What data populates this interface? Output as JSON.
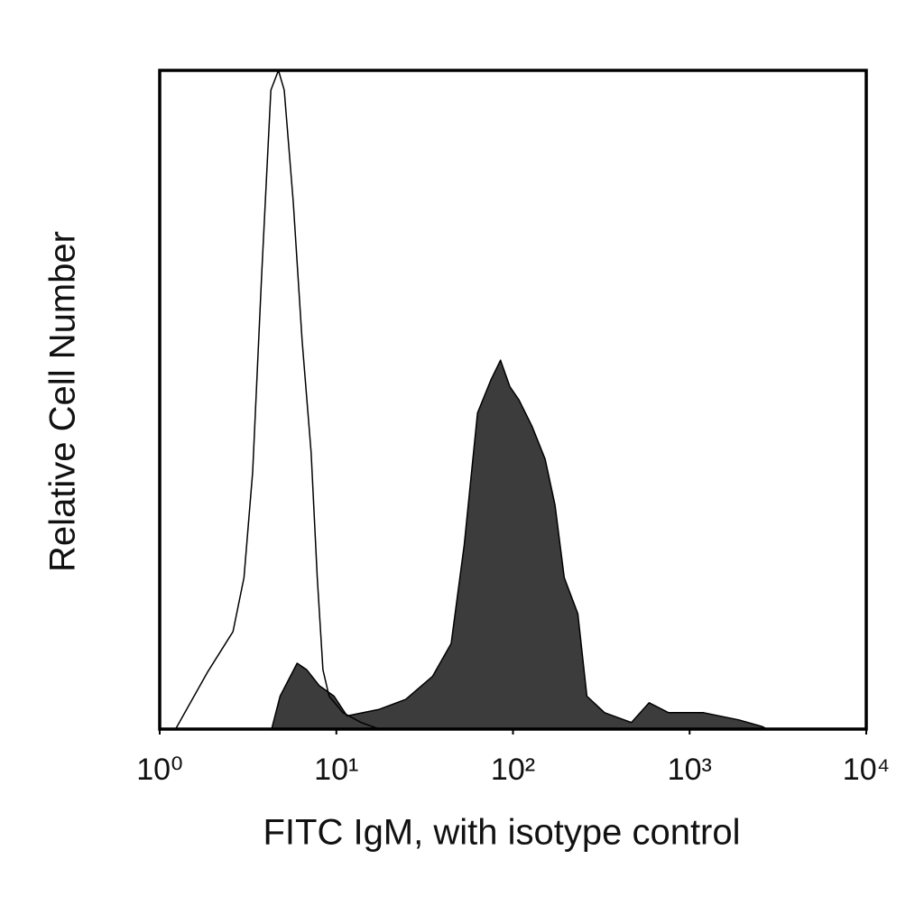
{
  "chart_data": {
    "type": "area",
    "x_label": "FITC IgM, with isotype control",
    "y_label": "Relative Cell Number",
    "xscale": "log",
    "xlim": [
      1,
      10000
    ],
    "xticks": [
      {
        "value": 1,
        "label": "10⁰"
      },
      {
        "value": 10,
        "label": "10¹"
      },
      {
        "value": 100,
        "label": "10²"
      },
      {
        "value": 1000,
        "label": "10³"
      },
      {
        "value": 10000,
        "label": "10⁴"
      }
    ],
    "ylim": [
      0,
      100
    ],
    "series": [
      {
        "color": "#000000",
        "filled": false,
        "x": [
          1.23,
          1.86,
          2.6,
          3.0,
          3.36,
          3.78,
          4.26,
          4.7,
          5.07,
          5.7,
          6.4,
          7.2,
          7.8,
          8.4,
          9.1,
          10.9,
          13.8,
          17.5
        ],
        "values": [
          0,
          8.6,
          14.8,
          23,
          39,
          69,
          97,
          100,
          97,
          80,
          59,
          42,
          23,
          9,
          5,
          2.5,
          1,
          0
        ]
      },
      {
        "color": "#3c3c3c",
        "filled": true,
        "x": [
          4.3,
          4.8,
          6,
          6.8,
          8,
          9.7,
          11.5,
          17.5,
          24.7,
          35,
          44.7,
          53,
          63,
          75,
          85,
          96,
          108,
          128,
          152,
          173,
          195,
          233,
          262,
          330,
          468,
          590,
          760,
          1200,
          1900,
          2570,
          2750
        ],
        "values": [
          0,
          5,
          10,
          9,
          6.6,
          5,
          2,
          3,
          4.5,
          8,
          13,
          28,
          48,
          53,
          56,
          52,
          50,
          46,
          41,
          34,
          23,
          17.5,
          5,
          2.5,
          1,
          4,
          2.5,
          2.5,
          1.4,
          0.4,
          0
        ]
      }
    ]
  }
}
